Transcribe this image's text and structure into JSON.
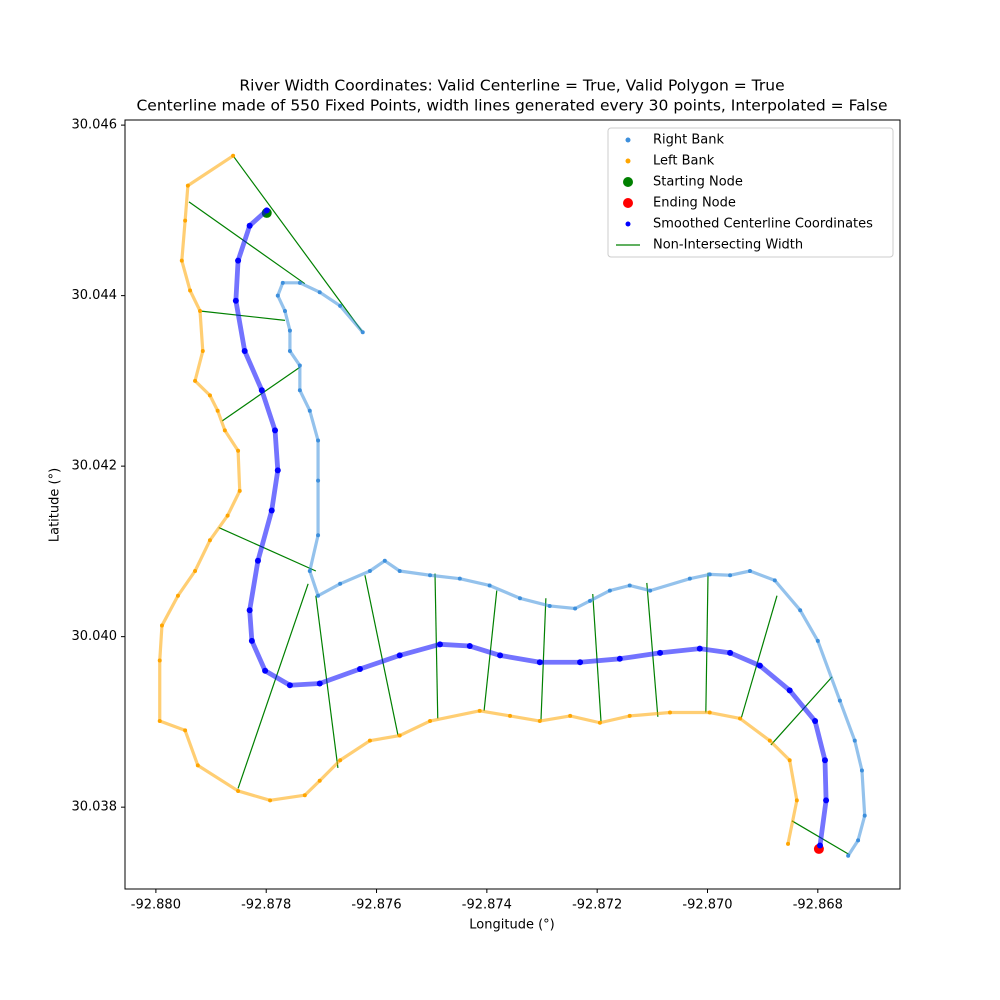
{
  "chart_data": {
    "type": "scatter",
    "title": "River Width Coordinates: Valid Centerline = True, Valid Polygon = True",
    "subtitle": "Centerline made of 550 Fixed Points, width lines generated every 30 points, Interpolated = False",
    "xlabel": "Longitude (°)",
    "ylabel": "Latitude (°)",
    "xlim": [
      -92.88056,
      -92.86651
    ],
    "ylim": [
      30.03704,
      30.04606
    ],
    "xticks": [
      {
        "value": -92.88,
        "label": "-92.880"
      },
      -92.878,
      -92.876,
      -92.874,
      -92.872,
      {
        "value": -92.87,
        "label": "-92.870"
      },
      -92.868
    ],
    "yticks": [
      30.038,
      {
        "value": 30.04,
        "label": "30.040"
      },
      30.042,
      30.044,
      30.046
    ],
    "legend": "upper right",
    "series": [
      {
        "name": "Right Bank",
        "color": "#3d8fdc",
        "marker_size": 2,
        "connect": true,
        "x": [
          -92.86745,
          -92.86727,
          -92.86715,
          -92.8672,
          -92.86733,
          -92.8676,
          -92.868,
          -92.86832,
          -92.86878,
          -92.86923,
          -92.86959,
          -92.86996,
          -92.87032,
          -92.87104,
          -92.87141,
          -92.87177,
          -92.87213,
          -92.8724,
          -92.87286,
          -92.8734,
          -92.87395,
          -92.87449,
          -92.87503,
          -92.87558,
          -92.87585,
          -92.87612,
          -92.87666,
          -92.87706,
          -92.87721,
          -92.87706,
          -92.87706,
          -92.87706,
          -92.87721,
          -92.87739,
          -92.87739,
          -92.87757,
          -92.87757,
          -92.87766,
          -92.87779,
          -92.8777,
          -92.87739,
          -92.87703,
          -92.87666,
          -92.87625
        ],
        "y": [
          30.03743,
          30.03761,
          30.0379,
          30.03843,
          30.03878,
          30.03925,
          30.03995,
          30.04031,
          30.04066,
          30.04077,
          30.04072,
          30.04073,
          30.04068,
          30.04054,
          30.0406,
          30.04054,
          30.04042,
          30.04033,
          30.04036,
          30.04045,
          30.0406,
          30.04068,
          30.04072,
          30.04077,
          30.04089,
          30.04077,
          30.04062,
          30.04048,
          30.04077,
          30.04119,
          30.04183,
          30.0423,
          30.04265,
          30.04289,
          30.04318,
          30.04335,
          30.04359,
          30.04382,
          30.044,
          30.04415,
          30.04415,
          30.04404,
          30.04388,
          30.04357
        ]
      },
      {
        "name": "Left Bank",
        "color": "orange",
        "marker_size": 2,
        "connect": true,
        "x": [
          -92.8786,
          -92.87942,
          -92.87947,
          -92.87953,
          -92.87938,
          -92.8792,
          -92.87915,
          -92.87929,
          -92.87902,
          -92.87888,
          -92.87875,
          -92.87851,
          -92.87848,
          -92.8787,
          -92.87902,
          -92.87929,
          -92.8796,
          -92.87989,
          -92.87993,
          -92.87993,
          -92.87947,
          -92.87924,
          -92.87851,
          -92.87793,
          -92.8773,
          -92.87703,
          -92.87666,
          -92.87612,
          -92.87558,
          -92.87503,
          -92.87413,
          -92.87358,
          -92.87304,
          -92.87249,
          -92.87195,
          -92.87141,
          -92.87068,
          -92.86996,
          -92.86941,
          -92.86887,
          -92.86851,
          -92.86838,
          -92.86854
        ],
        "y": [
          30.04564,
          30.04529,
          30.04488,
          30.04441,
          30.04406,
          30.04382,
          30.04335,
          30.043,
          30.04283,
          30.04265,
          30.04242,
          30.04218,
          30.04171,
          30.04142,
          30.04113,
          30.04077,
          30.04048,
          30.04013,
          30.03972,
          30.03901,
          30.0389,
          30.03849,
          30.03819,
          30.03808,
          30.03814,
          30.03831,
          30.03855,
          30.03878,
          30.03884,
          30.03901,
          30.03913,
          30.03907,
          30.03901,
          30.03907,
          30.03899,
          30.03907,
          30.03911,
          30.03911,
          30.03904,
          30.03878,
          30.03855,
          30.03808,
          30.03757
        ]
      },
      {
        "name": "Starting Node",
        "color": "green",
        "marker_size": 5,
        "connect": false,
        "x": [
          -92.87799
        ],
        "y": [
          30.04497
        ]
      },
      {
        "name": "Ending Node",
        "color": "red",
        "marker_size": 5,
        "connect": false,
        "x": [
          -92.86798
        ],
        "y": [
          30.03751
        ]
      },
      {
        "name": "Smoothed Centerline Coordinates",
        "color": "blue",
        "marker_size": 3,
        "connect": true,
        "x": [
          -92.87799,
          -92.8783,
          -92.87851,
          -92.87855,
          -92.87839,
          -92.87808,
          -92.87784,
          -92.87779,
          -92.8779,
          -92.87815,
          -92.8783,
          -92.87826,
          -92.87802,
          -92.87757,
          -92.87703,
          -92.8763,
          -92.87558,
          -92.87485,
          -92.87431,
          -92.87376,
          -92.87304,
          -92.87231,
          -92.87159,
          -92.87086,
          -92.87014,
          -92.86959,
          -92.86905,
          -92.86851,
          -92.86805,
          -92.86787,
          -92.86785,
          -92.86796
        ],
        "y": [
          30.045,
          30.04482,
          30.04441,
          30.04394,
          30.04335,
          30.04289,
          30.04242,
          30.04195,
          30.04148,
          30.04089,
          30.04031,
          30.03995,
          30.0396,
          30.03943,
          30.03945,
          30.03962,
          30.03978,
          30.03991,
          30.03989,
          30.03978,
          30.0397,
          30.0397,
          30.03974,
          30.03981,
          30.03986,
          30.03981,
          30.03966,
          30.03937,
          30.03901,
          30.03855,
          30.03808,
          30.03755
        ]
      }
    ],
    "lines": {
      "name": "Non-Intersecting Width",
      "color": "green",
      "segments": [
        {
          "x": [
            -92.8786,
            -92.87625
          ],
          "y": [
            30.04564,
            30.04357
          ]
        },
        {
          "x": [
            -92.8794,
            -92.8773
          ],
          "y": [
            30.0451,
            30.04414
          ]
        },
        {
          "x": [
            -92.8792,
            -92.87766
          ],
          "y": [
            30.04382,
            30.04371
          ]
        },
        {
          "x": [
            -92.8788,
            -92.87739
          ],
          "y": [
            30.04253,
            30.04316
          ]
        },
        {
          "x": [
            -92.87886,
            -92.8771
          ],
          "y": [
            30.04128,
            30.04077
          ]
        },
        {
          "x": [
            -92.87851,
            -92.87724
          ],
          "y": [
            30.03822,
            30.04062
          ]
        },
        {
          "x": [
            -92.8767,
            -92.8771
          ],
          "y": [
            30.03846,
            30.04048
          ]
        },
        {
          "x": [
            -92.87561,
            -92.87621
          ],
          "y": [
            30.03884,
            30.04072
          ]
        },
        {
          "x": [
            -92.87489,
            -92.87494
          ],
          "y": [
            30.03904,
            30.04074
          ]
        },
        {
          "x": [
            -92.87405,
            -92.87382
          ],
          "y": [
            30.03913,
            30.04054
          ]
        },
        {
          "x": [
            -92.87302,
            -92.87293
          ],
          "y": [
            30.039,
            30.04045
          ]
        },
        {
          "x": [
            -92.87193,
            -92.87208
          ],
          "y": [
            30.039,
            30.0405
          ]
        },
        {
          "x": [
            -92.8709,
            -92.8711
          ],
          "y": [
            30.03906,
            30.04063
          ]
        },
        {
          "x": [
            -92.87003,
            -92.86999
          ],
          "y": [
            30.03911,
            30.04075
          ]
        },
        {
          "x": [
            -92.86939,
            -92.86874
          ],
          "y": [
            30.03904,
            30.04048
          ]
        },
        {
          "x": [
            -92.86885,
            -92.86774
          ],
          "y": [
            30.03873,
            30.03953
          ]
        },
        {
          "x": [
            -92.86847,
            -92.86742
          ],
          "y": [
            30.03784,
            30.03744
          ]
        }
      ]
    }
  }
}
